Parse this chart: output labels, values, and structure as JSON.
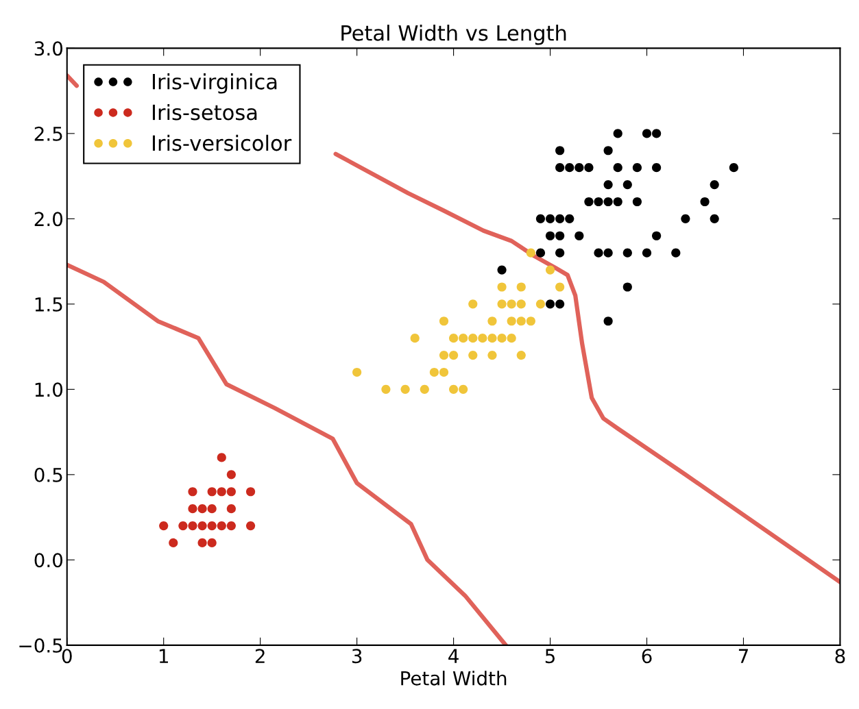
{
  "chart_data": {
    "type": "scatter",
    "title": "Petal Width vs Length",
    "xlabel": "Petal Width",
    "xlim": [
      0,
      8
    ],
    "xticks": [
      0,
      1,
      2,
      3,
      4,
      5,
      6,
      7,
      8
    ],
    "ylim": [
      -0.5,
      3.0
    ],
    "yticks": [
      {
        "value": -0.5,
        "label": "−0.5"
      },
      {
        "value": 0,
        "label": "0.0"
      },
      {
        "value": 0.5,
        "label": "0.5"
      },
      {
        "value": 1,
        "label": "1.0"
      },
      {
        "value": 1.5,
        "label": "1.5"
      },
      {
        "value": 2,
        "label": "2.0"
      },
      {
        "value": 2.5,
        "label": "2.5"
      },
      {
        "value": 3,
        "label": "3.0"
      }
    ],
    "grid": false,
    "legend": "top left",
    "marker": "circle",
    "series": [
      {
        "name": "Iris-virginica",
        "color": "#000000",
        "x": [
          5.7,
          6.0,
          6.1,
          5.1,
          5.6,
          5.1,
          5.2,
          5.3,
          5.4,
          5.7,
          5.9,
          6.1,
          6.9,
          5.6,
          5.8,
          6.7,
          5.4,
          5.5,
          5.6,
          5.7,
          5.9,
          6.6,
          4.9,
          5.0,
          5.1,
          5.2,
          6.4,
          6.7,
          5.0,
          5.1,
          5.3,
          6.1,
          4.9,
          5.1,
          5.5,
          5.6,
          5.8,
          6.0,
          6.3,
          4.5,
          5.8,
          5.0,
          5.1,
          5.6
        ],
        "values": [
          2.5,
          2.5,
          2.5,
          2.4,
          2.4,
          2.3,
          2.3,
          2.3,
          2.3,
          2.3,
          2.3,
          2.3,
          2.3,
          2.2,
          2.2,
          2.2,
          2.1,
          2.1,
          2.1,
          2.1,
          2.1,
          2.1,
          2.0,
          2.0,
          2.0,
          2.0,
          2.0,
          2.0,
          1.9,
          1.9,
          1.9,
          1.9,
          1.8,
          1.8,
          1.8,
          1.8,
          1.8,
          1.8,
          1.8,
          1.7,
          1.6,
          1.5,
          1.5,
          1.4
        ]
      },
      {
        "name": "Iris-setosa",
        "color": "#cc2a1e",
        "x": [
          1.6,
          1.7,
          1.3,
          1.5,
          1.6,
          1.7,
          1.9,
          1.3,
          1.4,
          1.5,
          1.7,
          1.0,
          1.2,
          1.3,
          1.4,
          1.5,
          1.6,
          1.7,
          1.9,
          1.1,
          1.4,
          1.5
        ],
        "values": [
          0.6,
          0.5,
          0.4,
          0.4,
          0.4,
          0.4,
          0.4,
          0.3,
          0.3,
          0.3,
          0.3,
          0.2,
          0.2,
          0.2,
          0.2,
          0.2,
          0.2,
          0.2,
          0.2,
          0.1,
          0.1,
          0.1
        ]
      },
      {
        "name": "Iris-versicolor",
        "color": "#f0c53a",
        "x": [
          4.8,
          5.0,
          4.5,
          4.7,
          5.1,
          4.2,
          4.5,
          4.6,
          4.7,
          4.9,
          3.9,
          4.4,
          4.6,
          4.7,
          4.8,
          3.6,
          4.0,
          4.1,
          4.2,
          4.3,
          4.4,
          4.5,
          4.6,
          3.9,
          4.0,
          4.2,
          4.4,
          4.7,
          3.0,
          3.8,
          3.9,
          3.3,
          3.5,
          3.7,
          4.0,
          4.1
        ],
        "values": [
          1.8,
          1.7,
          1.6,
          1.6,
          1.6,
          1.5,
          1.5,
          1.5,
          1.5,
          1.5,
          1.4,
          1.4,
          1.4,
          1.4,
          1.4,
          1.3,
          1.3,
          1.3,
          1.3,
          1.3,
          1.3,
          1.3,
          1.3,
          1.2,
          1.2,
          1.2,
          1.2,
          1.2,
          1.1,
          1.1,
          1.1,
          1.0,
          1.0,
          1.0,
          1.0,
          1.0
        ]
      },
      {
        "type": "line",
        "marker": "none",
        "color": "#e0625a",
        "x": [
          0,
          0.1,
          null,
          2.78,
          3.53,
          3.89,
          4.31,
          4.6,
          4.84,
          5.06,
          5.18,
          5.26,
          5.33,
          5.43,
          5.55,
          5.7,
          6.4,
          8.0
        ],
        "values": [
          2.84,
          2.78,
          null,
          2.38,
          2.15,
          2.05,
          1.93,
          1.87,
          1.78,
          1.71,
          1.67,
          1.55,
          1.27,
          0.95,
          0.83,
          0.77,
          0.5,
          -0.13
        ]
      },
      {
        "type": "line",
        "marker": "none",
        "color": "#e0625a",
        "x": [
          0,
          0.38,
          0.94,
          1.36,
          1.65,
          2.15,
          2.75,
          3.0,
          3.56,
          3.73,
          4.12,
          4.54
        ],
        "values": [
          1.73,
          1.63,
          1.4,
          1.3,
          1.03,
          0.89,
          0.71,
          0.45,
          0.21,
          0.0,
          -0.21,
          -0.5
        ]
      }
    ]
  }
}
